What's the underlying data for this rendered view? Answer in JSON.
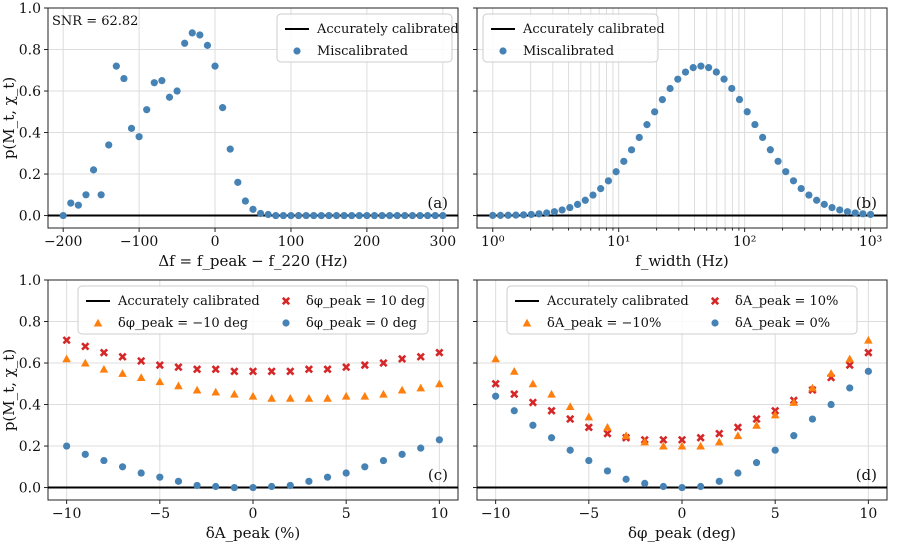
{
  "chart_data": [
    {
      "type": "scatter",
      "panel": "(a)",
      "annotation": "SNR = 62.82",
      "xlabel": "Δf = f_peak − f_220 (Hz)",
      "ylabel": "p(M_t, χ_t)",
      "xscale": "linear",
      "xlim": [
        -220,
        320
      ],
      "ylim": [
        -0.06,
        1.0
      ],
      "xticks": [
        -200,
        -100,
        0,
        100,
        200,
        300
      ],
      "xtick_labels": [
        "−200",
        "−100",
        "0",
        "100",
        "200",
        "300"
      ],
      "yticks": [
        0.0,
        0.2,
        0.4,
        0.6,
        0.8,
        1.0
      ],
      "ytick_labels": [
        "0.0",
        "0.2",
        "0.4",
        "0.6",
        "0.8",
        "1.0"
      ],
      "legend": [
        "Accurately calibrated",
        "Miscalibrated"
      ],
      "legend_position": "top-right",
      "hline": 0.0,
      "series": [
        {
          "name": "Miscalibrated",
          "marker": "circle",
          "color": "#4682b4",
          "x": [
            -200,
            -190,
            -180,
            -170,
            -160,
            -150,
            -140,
            -130,
            -120,
            -110,
            -100,
            -90,
            -80,
            -70,
            -60,
            -50,
            -40,
            -30,
            -20,
            -10,
            0,
            10,
            20,
            30,
            40,
            50,
            60,
            70,
            80,
            90,
            100,
            110,
            120,
            130,
            140,
            150,
            160,
            170,
            180,
            190,
            200,
            210,
            220,
            230,
            240,
            250,
            260,
            270,
            280,
            290,
            300
          ],
          "y": [
            0.0,
            0.06,
            0.05,
            0.1,
            0.22,
            0.1,
            0.34,
            0.72,
            0.66,
            0.42,
            0.38,
            0.51,
            0.64,
            0.65,
            0.57,
            0.6,
            0.83,
            0.88,
            0.87,
            0.82,
            0.72,
            0.52,
            0.32,
            0.16,
            0.07,
            0.03,
            0.01,
            0.005,
            0,
            0,
            0,
            0,
            0,
            0,
            0,
            0,
            0,
            0,
            0,
            0,
            0,
            0,
            0,
            0,
            0,
            0,
            0,
            0,
            0,
            0,
            0
          ]
        }
      ]
    },
    {
      "type": "scatter",
      "panel": "(b)",
      "xlabel": "f_width (Hz)",
      "ylabel": "",
      "xscale": "log",
      "xlim": [
        0.75,
        1350
      ],
      "ylim": [
        -0.06,
        1.0
      ],
      "xticks": [
        1,
        10,
        100,
        1000
      ],
      "xtick_labels": [
        "10⁰",
        "10¹",
        "10²",
        "10³"
      ],
      "yticks": [
        0.0,
        0.2,
        0.4,
        0.6,
        0.8,
        1.0
      ],
      "legend": [
        "Accurately calibrated",
        "Miscalibrated"
      ],
      "legend_position": "top-left",
      "hline": 0.0,
      "series": [
        {
          "name": "Miscalibrated",
          "marker": "circle",
          "color": "#4682b4",
          "peak_x": 45,
          "peak_y": 0.72,
          "n_points": 50,
          "x_range": [
            1,
            1000
          ]
        }
      ]
    },
    {
      "type": "scatter",
      "panel": "(c)",
      "xlabel": "δA_peak (%)",
      "ylabel": "p(M_t, χ_t)",
      "xscale": "linear",
      "xlim": [
        -11,
        11
      ],
      "ylim": [
        -0.06,
        1.0
      ],
      "xticks": [
        -10,
        -5,
        0,
        5,
        10
      ],
      "xtick_labels": [
        "−10",
        "−5",
        "0",
        "5",
        "10"
      ],
      "yticks": [
        0.0,
        0.2,
        0.4,
        0.6,
        0.8,
        1.0
      ],
      "ytick_labels": [
        "0.0",
        "0.2",
        "0.4",
        "0.6",
        "0.8",
        "1.0"
      ],
      "legend": [
        "Accurately calibrated",
        "δφ_peak = −10 deg",
        "δφ_peak = 10 deg",
        "δφ_peak = 0 deg"
      ],
      "legend_position": "upper-center",
      "hline": 0.0,
      "x": [
        -10,
        -9,
        -8,
        -7,
        -6,
        -5,
        -4,
        -3,
        -2,
        -1,
        0,
        1,
        2,
        3,
        4,
        5,
        6,
        7,
        8,
        9,
        10
      ],
      "series": [
        {
          "name": "δφ_peak = 10 deg",
          "marker": "x",
          "color": "#d62728",
          "values": [
            0.71,
            0.68,
            0.65,
            0.63,
            0.61,
            0.59,
            0.58,
            0.57,
            0.57,
            0.56,
            0.56,
            0.56,
            0.56,
            0.57,
            0.57,
            0.58,
            0.59,
            0.6,
            0.62,
            0.63,
            0.65
          ]
        },
        {
          "name": "δφ_peak = −10 deg",
          "marker": "triangle",
          "color": "#ff7f0e",
          "values": [
            0.62,
            0.6,
            0.57,
            0.55,
            0.53,
            0.51,
            0.49,
            0.47,
            0.46,
            0.45,
            0.44,
            0.43,
            0.43,
            0.43,
            0.43,
            0.44,
            0.44,
            0.45,
            0.47,
            0.48,
            0.5
          ]
        },
        {
          "name": "δφ_peak = 0 deg",
          "marker": "circle",
          "color": "#4682b4",
          "values": [
            0.2,
            0.16,
            0.13,
            0.1,
            0.07,
            0.05,
            0.03,
            0.01,
            0.005,
            0.0,
            0.0,
            0.005,
            0.01,
            0.03,
            0.05,
            0.07,
            0.1,
            0.13,
            0.16,
            0.19,
            0.23
          ]
        }
      ]
    },
    {
      "type": "scatter",
      "panel": "(d)",
      "xlabel": "δφ_peak (deg)",
      "ylabel": "",
      "xscale": "linear",
      "xlim": [
        -11,
        11
      ],
      "ylim": [
        -0.06,
        1.0
      ],
      "xticks": [
        -10,
        -5,
        0,
        5,
        10
      ],
      "xtick_labels": [
        "−10",
        "−5",
        "0",
        "5",
        "10"
      ],
      "yticks": [
        0.0,
        0.2,
        0.4,
        0.6,
        0.8,
        1.0
      ],
      "legend": [
        "Accurately calibrated",
        "δA_peak = −10%",
        "δA_peak = 10%",
        "δA_peak = 0%"
      ],
      "legend_position": "upper-center",
      "hline": 0.0,
      "x": [
        -10,
        -9,
        -8,
        -7,
        -6,
        -5,
        -4,
        -3,
        -2,
        -1,
        0,
        1,
        2,
        3,
        4,
        5,
        6,
        7,
        8,
        9,
        10
      ],
      "series": [
        {
          "name": "δA_peak = 10%",
          "marker": "x",
          "color": "#d62728",
          "values": [
            0.5,
            0.45,
            0.41,
            0.37,
            0.33,
            0.29,
            0.26,
            0.24,
            0.23,
            0.23,
            0.23,
            0.24,
            0.26,
            0.29,
            0.33,
            0.37,
            0.42,
            0.47,
            0.53,
            0.59,
            0.65
          ]
        },
        {
          "name": "δA_peak = −10%",
          "marker": "triangle",
          "color": "#ff7f0e",
          "values": [
            0.62,
            0.56,
            0.5,
            0.45,
            0.39,
            0.34,
            0.29,
            0.25,
            0.22,
            0.2,
            0.2,
            0.2,
            0.22,
            0.25,
            0.3,
            0.35,
            0.41,
            0.48,
            0.55,
            0.62,
            0.71
          ]
        },
        {
          "name": "δA_peak = 0%",
          "marker": "circle",
          "color": "#4682b4",
          "values": [
            0.44,
            0.37,
            0.3,
            0.24,
            0.18,
            0.13,
            0.08,
            0.04,
            0.02,
            0.005,
            0.0,
            0.005,
            0.03,
            0.07,
            0.12,
            0.18,
            0.25,
            0.33,
            0.4,
            0.48,
            0.56
          ]
        }
      ]
    }
  ]
}
